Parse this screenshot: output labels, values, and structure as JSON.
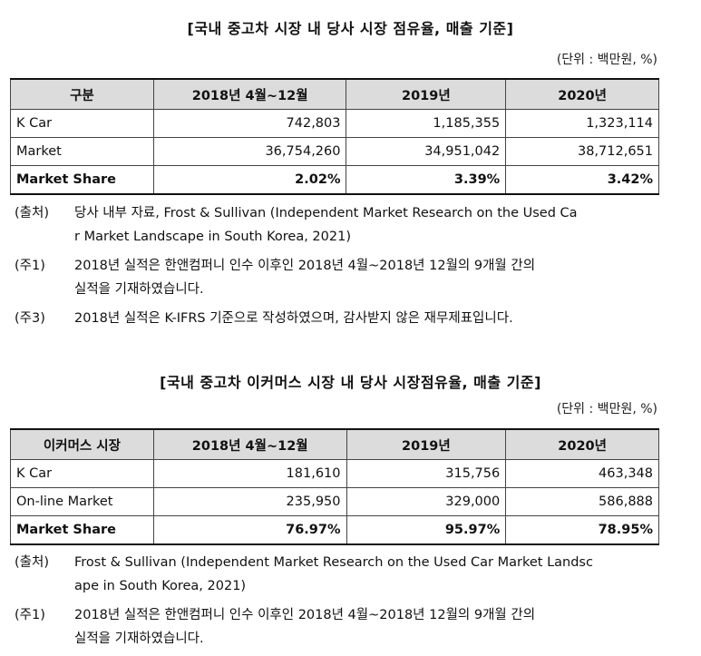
{
  "section1": {
    "title": "[국내 중고차 시장 내 당사 시장 점유율, 매출 기준]",
    "unit": "(단위 : 백만원, %)",
    "headers": [
      "구분",
      "2018년 4월~12월",
      "2019년",
      "2020년"
    ],
    "rows": [
      {
        "label": "K Car",
        "values": [
          "742,803",
          "1,185,355",
          "1,323,114"
        ]
      },
      {
        "label": "Market",
        "values": [
          "36,754,260",
          "34,951,042",
          "38,712,651"
        ]
      },
      {
        "label": "Market Share",
        "values": [
          "2.02%",
          "3.39%",
          "3.42%"
        ]
      }
    ],
    "notes": [
      {
        "tag": "(출처)",
        "lines": [
          "당사 내부 자료, Frost & Sullivan (Independent Market Research on the Used Ca",
          "r Market Landscape in South Korea, 2021)"
        ]
      },
      {
        "tag": "(주1)",
        "lines": [
          "2018년 실적은 한앤컴퍼니 인수 이후인 2018년 4월~2018년 12월의 9개월 간의",
          "실적을 기재하였습니다."
        ]
      },
      {
        "tag": "(주3)",
        "lines": [
          "2018년 실적은 K-IFRS 기준으로 작성하였으며, 감사받지 않은 재무제표입니다."
        ]
      }
    ]
  },
  "section2": {
    "title": "[국내 중고차 이커머스 시장 내 당사 시장점유율, 매출 기준]",
    "unit": "(단위 : 백만원, %)",
    "headers": [
      "이커머스 시장",
      "2018년 4월~12월",
      "2019년",
      "2020년"
    ],
    "rows": [
      {
        "label": "K Car",
        "values": [
          "181,610",
          "315,756",
          "463,348"
        ]
      },
      {
        "label": "On-line Market",
        "values": [
          "235,950",
          "329,000",
          "586,888"
        ]
      },
      {
        "label": "Market Share",
        "values": [
          "76.97%",
          "95.97%",
          "78.95%"
        ]
      }
    ],
    "notes": [
      {
        "tag": "(출처)",
        "lines": [
          "Frost & Sullivan (Independent Market Research on the Used Car Market Landsc",
          "ape in South Korea, 2021)"
        ]
      },
      {
        "tag": "(주1)",
        "lines": [
          "2018년 실적은 한앤컴퍼니 인수 이후인 2018년 4월~2018년 12월의 9개월 간의",
          "실적을 기재하였습니다."
        ]
      }
    ]
  }
}
